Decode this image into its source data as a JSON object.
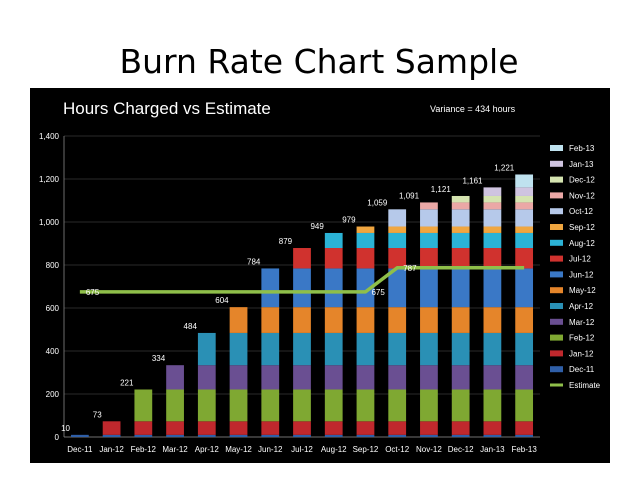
{
  "slide": {
    "title": "Burn Rate Chart Sample"
  },
  "chart_data": {
    "type": "bar",
    "stacked": true,
    "title": "Hours Charged vs Estimate",
    "subtitle": "Variance = 434 hours",
    "xlabel": "",
    "ylabel": "",
    "ylim": [
      0,
      1400
    ],
    "yticks": [
      0,
      200,
      400,
      600,
      800,
      1000,
      1200,
      1400
    ],
    "ytick_labels": [
      "0",
      "200",
      "400",
      "600",
      "800",
      "1,000",
      "1,200",
      "1,400"
    ],
    "categories": [
      "Dec-11",
      "Jan-12",
      "Feb-12",
      "Mar-12",
      "Apr-12",
      "May-12",
      "Jun-12",
      "Jul-12",
      "Aug-12",
      "Sep-12",
      "Oct-12",
      "Nov-12",
      "Dec-12",
      "Jan-13",
      "Feb-13"
    ],
    "series": [
      {
        "name": "Dec-11",
        "color": "#2f5fa8",
        "increment": 10
      },
      {
        "name": "Jan-12",
        "color": "#c0282d",
        "increment": 63
      },
      {
        "name": "Feb-12",
        "color": "#7fa832",
        "increment": 148
      },
      {
        "name": "Mar-12",
        "color": "#6a4f92",
        "increment": 113
      },
      {
        "name": "Apr-12",
        "color": "#2a90b5",
        "increment": 150
      },
      {
        "name": "May-12",
        "color": "#e5852a",
        "increment": 120
      },
      {
        "name": "Jun-12",
        "color": "#3a78c6",
        "increment": 180
      },
      {
        "name": "Jul-12",
        "color": "#d0322e",
        "increment": 95
      },
      {
        "name": "Aug-12",
        "color": "#2bb3d6",
        "increment": 70
      },
      {
        "name": "Sep-12",
        "color": "#f0a640",
        "increment": 30
      },
      {
        "name": "Oct-12",
        "color": "#b6c9ea",
        "increment": 80
      },
      {
        "name": "Nov-12",
        "color": "#eba8a6",
        "increment": 32
      },
      {
        "name": "Dec-12",
        "color": "#d5e4b0",
        "increment": 30
      },
      {
        "name": "Jan-13",
        "color": "#cfc4e0",
        "increment": 40
      },
      {
        "name": "Feb-13",
        "color": "#bfe2ef",
        "increment": 60
      }
    ],
    "totals": [
      10,
      73,
      221,
      334,
      484,
      604,
      784,
      879,
      949,
      979,
      1059,
      1091,
      1121,
      1161,
      1221
    ],
    "total_labels": [
      "10",
      "73",
      "221",
      "334",
      "484",
      "604",
      "784",
      "879",
      "949",
      "979",
      "1,059",
      "1,091",
      "1,121",
      "1,161",
      "1,221"
    ],
    "estimate": {
      "name": "Estimate",
      "color": "#8fbf4a",
      "values": [
        675,
        675,
        675,
        675,
        675,
        675,
        675,
        675,
        675,
        675,
        787,
        787,
        787,
        787,
        787
      ],
      "labels": {
        "0": "675",
        "9": "675",
        "10": "787"
      }
    },
    "legend_position": "right",
    "grid": true
  }
}
